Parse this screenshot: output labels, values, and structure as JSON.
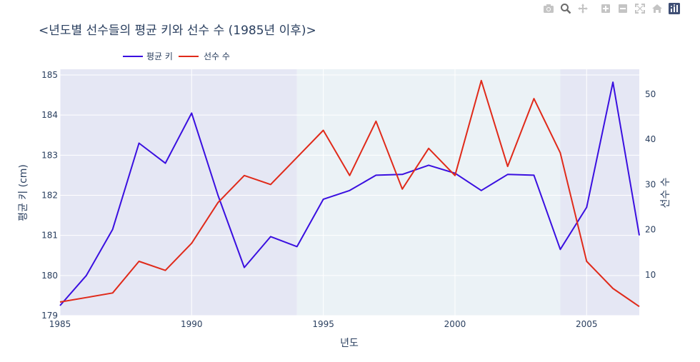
{
  "modebar": {
    "icons": [
      "camera-icon",
      "zoom-icon",
      "pan-icon",
      "zoom-in-icon",
      "zoom-out-icon",
      "autoscale-icon",
      "home-icon",
      "plotly-logo-icon"
    ]
  },
  "chart_data": {
    "type": "line",
    "title": "<년도별 선수들의 평균 키와 선수 수 (1985년 이후)>",
    "xlabel": "년도",
    "ylabel_left": "평균 키 (cm)",
    "ylabel_right": "선수 수",
    "x": [
      1985,
      1986,
      1987,
      1988,
      1989,
      1990,
      1991,
      1992,
      1993,
      1994,
      1995,
      1996,
      1997,
      1998,
      1999,
      2000,
      2001,
      2002,
      2003,
      2004,
      2005,
      2006,
      2007
    ],
    "xlim": [
      1985,
      2007
    ],
    "xticks": [
      1985,
      1990,
      1995,
      2000,
      2005
    ],
    "ylim_left": [
      179,
      185
    ],
    "yticks_left": [
      179,
      180,
      181,
      182,
      183,
      184,
      185
    ],
    "ylim_right": [
      1,
      55.5
    ],
    "yticks_right": [
      10,
      20,
      30,
      40,
      50
    ],
    "series": [
      {
        "name": "평균 키",
        "axis": "left",
        "color": "#3a0fe0",
        "values": [
          179.25,
          180.0,
          181.15,
          183.3,
          182.8,
          184.05,
          182.0,
          180.2,
          180.97,
          180.72,
          181.9,
          182.12,
          182.5,
          182.52,
          182.75,
          182.55,
          182.12,
          182.52,
          182.5,
          180.65,
          181.7,
          184.82,
          181.0
        ]
      },
      {
        "name": "선수 수",
        "axis": "right",
        "color": "#e02a1a",
        "values": [
          4,
          5,
          6,
          13,
          11,
          17,
          26,
          32,
          30,
          36,
          42,
          32,
          44,
          29,
          38,
          32,
          53,
          34,
          49,
          37,
          13,
          7,
          3
        ]
      }
    ],
    "shaded_ranges": [
      {
        "x0": 1985,
        "x1": 1994,
        "color": "#e5e7f4"
      },
      {
        "x0": 1994,
        "x1": 2004,
        "color": "#ebf2f6"
      },
      {
        "x0": 2004,
        "x1": 2007,
        "color": "#e5e7f4"
      }
    ],
    "grid": true,
    "legend_position": "top-left"
  }
}
